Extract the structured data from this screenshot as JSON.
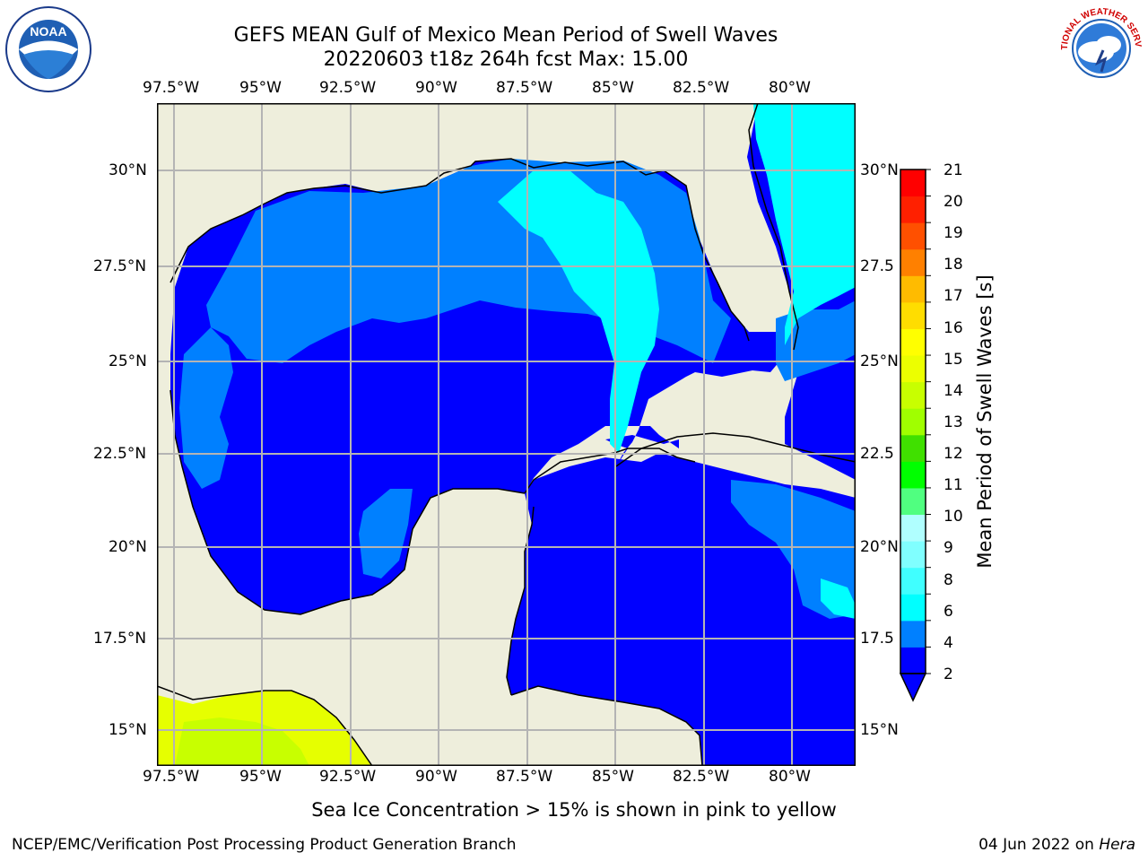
{
  "title": {
    "line1": "GEFS MEAN Gulf of Mexico Mean Period of Swell Waves",
    "line2": "20220603 t18z 264h fcst   Max: 15.00"
  },
  "map": {
    "lon_labels": [
      "97.5°W",
      "95°W",
      "92.5°W",
      "90°W",
      "87.5°W",
      "85°W",
      "82.5°W",
      "80°W"
    ],
    "lat_labels": [
      "30°N",
      "27.5°N",
      "25°N",
      "22.5°N",
      "20°N",
      "17.5°N",
      "15°N"
    ],
    "lat_labels_right": [
      "30°N",
      "27.5",
      "25°N",
      "22.5",
      "20°N",
      "17.5",
      "15°N"
    ],
    "colors": {
      "land": "#eeeedc",
      "ocean_deep": "#0000ff",
      "ocean_mid": "#0080ff",
      "ocean_light": "#00ffff",
      "ice_yellow": "#e6ff00"
    }
  },
  "colorbar": {
    "title": "Mean Period of Swell Waves [s]",
    "ticks": [
      "2",
      "4",
      "6",
      "8",
      "9",
      "10",
      "11",
      "12",
      "13",
      "14",
      "15",
      "16",
      "17",
      "18",
      "19",
      "20",
      "21"
    ],
    "colors": [
      "#0000ff",
      "#0080ff",
      "#00ffff",
      "#40ffff",
      "#80ffff",
      "#b0ffff",
      "#50ff80",
      "#00ff00",
      "#40e000",
      "#a0ff00",
      "#c8ff00",
      "#ecff00",
      "#ffff00",
      "#ffdd00",
      "#ffbb00",
      "#ff8000",
      "#ff5000",
      "#ff2000",
      "#ff0000"
    ]
  },
  "ice_note": "Sea Ice Concentration > 15% is shown in pink to yellow",
  "footer": {
    "left": "NCEP/EMC/Verification Post Processing Product Generation Branch",
    "right_date": "04 Jun 2022 on ",
    "right_machine": "Hera"
  },
  "logos": {
    "noaa_text": "NOAA",
    "nws_text": "NATIONAL WEATHER SERVICE"
  }
}
